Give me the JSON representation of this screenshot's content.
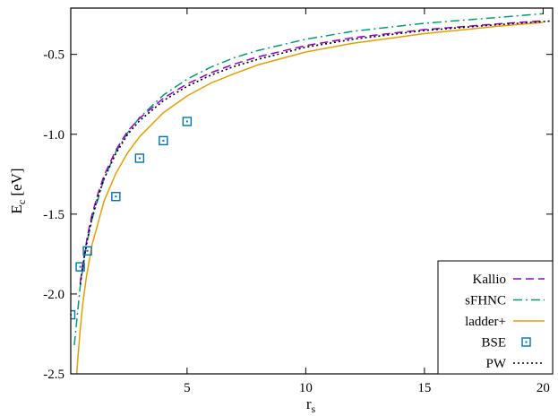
{
  "chart_data": {
    "type": "line",
    "title": "",
    "xlabel": {
      "base": "r",
      "sub": "s"
    },
    "ylabel": {
      "base": "E",
      "sub": "c",
      "unit": " [eV]"
    },
    "xlim": [
      0.1,
      20.4
    ],
    "ylim": [
      -2.5,
      -0.21
    ],
    "xticks": [
      5,
      10,
      15,
      20
    ],
    "xtick_labels": [
      "5",
      "10",
      "15",
      "20"
    ],
    "yticks": [
      -2.5,
      -2.0,
      -1.5,
      -1.0,
      -0.5
    ],
    "ytick_labels": [
      "-2.5",
      "-2.0",
      "-1.5",
      "-1.0",
      "-0.5"
    ],
    "grid": false,
    "legend_position": "bottom-right",
    "series": [
      {
        "name": "Kallio",
        "style": "dashed",
        "color": "#9400d3",
        "x": [
          0.5,
          0.6,
          0.8,
          1,
          1.25,
          1.5,
          2,
          2.5,
          3,
          4,
          5,
          6,
          7,
          8,
          10,
          12,
          15,
          18,
          20
        ],
        "y": [
          -1.93,
          -1.82,
          -1.64,
          -1.5,
          -1.37,
          -1.26,
          -1.1,
          -0.98,
          -0.9,
          -0.775,
          -0.685,
          -0.615,
          -0.56,
          -0.515,
          -0.445,
          -0.395,
          -0.345,
          -0.31,
          -0.29
        ]
      },
      {
        "name": "sFHNC",
        "style": "dashdot",
        "color": "#009e73",
        "x": [
          0.25,
          0.5,
          0.75,
          1,
          1.5,
          2,
          2.5,
          3,
          4,
          5,
          6,
          7,
          8,
          10,
          12,
          15,
          18,
          20
        ],
        "y": [
          -2.32,
          -1.95,
          -1.7,
          -1.53,
          -1.28,
          -1.11,
          -0.99,
          -0.895,
          -0.755,
          -0.655,
          -0.58,
          -0.52,
          -0.475,
          -0.405,
          -0.355,
          -0.305,
          -0.27,
          -0.245
        ]
      },
      {
        "name": "ladder+",
        "style": "solid",
        "color": "#e69f00",
        "x": [
          0.35,
          0.4,
          0.5,
          0.6,
          0.75,
          1,
          1.5,
          2,
          2.5,
          3,
          4,
          5,
          6,
          7,
          8,
          10,
          12,
          15,
          18,
          20
        ],
        "y": [
          -2.5,
          -2.4,
          -2.22,
          -2.07,
          -1.9,
          -1.69,
          -1.42,
          -1.245,
          -1.115,
          -1.015,
          -0.865,
          -0.76,
          -0.68,
          -0.62,
          -0.565,
          -0.485,
          -0.43,
          -0.37,
          -0.325,
          -0.3
        ]
      },
      {
        "name": "BSE",
        "style": "markers",
        "color": "#0072b2",
        "x": [
          0.1,
          0.5,
          0.8,
          2,
          3,
          4,
          5
        ],
        "y": [
          -2.13,
          -1.83,
          -1.73,
          -1.39,
          -1.15,
          -1.04,
          -0.92
        ]
      },
      {
        "name": "PW",
        "style": "dotted",
        "color": "#000000",
        "x": [
          0.5,
          0.6,
          0.8,
          1,
          1.25,
          1.5,
          2,
          2.5,
          3,
          4,
          5,
          6,
          7,
          8,
          10,
          12,
          15,
          18,
          20,
          20.4
        ],
        "y": [
          -1.94,
          -1.83,
          -1.66,
          -1.52,
          -1.39,
          -1.28,
          -1.12,
          -1.0,
          -0.915,
          -0.79,
          -0.7,
          -0.63,
          -0.575,
          -0.53,
          -0.455,
          -0.405,
          -0.35,
          -0.315,
          -0.295,
          -0.29
        ]
      }
    ]
  }
}
